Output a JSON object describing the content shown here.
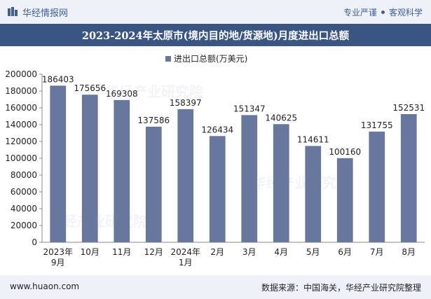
{
  "header": {
    "brand": "华经情报网",
    "tags": [
      "专业严谨",
      "客观科学"
    ]
  },
  "title": "2023-2024年太原市(境内目的地/货源地)月度进出口总额",
  "footer": {
    "website": "www.huaon.com",
    "source": "数据来源：中国海关，华经产业研究院整理"
  },
  "colors": {
    "bar": "#67779e",
    "title_bg": "#3a5582",
    "accent": "#3d5f94"
  },
  "watermarks": [
    "华经产业研究院",
    "www.huaon.com"
  ],
  "chart_data": {
    "type": "bar",
    "categories": [
      "2023年\n9月",
      "10月",
      "11月",
      "12月",
      "2024年\n1月",
      "2月",
      "3月",
      "4月",
      "5月",
      "6月",
      "7月",
      "8月"
    ],
    "series": [
      {
        "name": "进出口总额(万美元)",
        "values": [
          186403,
          175656,
          169308,
          137586,
          158397,
          126434,
          151347,
          140625,
          114611,
          100160,
          131755,
          152531
        ]
      }
    ],
    "ylim": [
      0,
      200000
    ],
    "yticks": [
      0,
      20000,
      40000,
      60000,
      80000,
      100000,
      120000,
      140000,
      160000,
      180000,
      200000
    ],
    "legend": "top-center",
    "grid": false
  }
}
